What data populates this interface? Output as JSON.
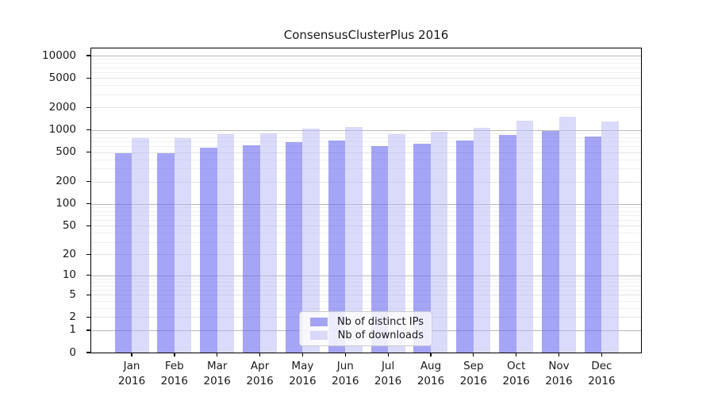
{
  "title": "ConsensusClusterPlus 2016",
  "chart_data": {
    "type": "bar",
    "title": "ConsensusClusterPlus 2016",
    "categories": [
      "Jan 2016",
      "Feb 2016",
      "Mar 2016",
      "Apr 2016",
      "May 2016",
      "Jun 2016",
      "Jul 2016",
      "Aug 2016",
      "Sep 2016",
      "Oct 2016",
      "Nov 2016",
      "Dec 2016"
    ],
    "series": [
      {
        "name": "Nb of distinct IPs",
        "color": "rgba(100,100,240,0.58)",
        "solid_color": "#aaaaf5",
        "values": [
          480,
          485,
          575,
          620,
          690,
          720,
          610,
          650,
          725,
          850,
          960,
          820
        ]
      },
      {
        "name": "Nb of downloads",
        "color": "rgba(185,185,245,0.52)",
        "solid_color": "#dcdcf8",
        "values": [
          780,
          770,
          870,
          905,
          1050,
          1090,
          880,
          940,
          1070,
          1340,
          1520,
          1300
        ]
      }
    ],
    "xlabel": "",
    "ylabel": "",
    "yscale": "log1p",
    "ylim": [
      0,
      10000
    ],
    "yticks": [
      0,
      1,
      2,
      5,
      10,
      20,
      50,
      100,
      200,
      500,
      1000,
      2000,
      5000,
      10000
    ],
    "grid": "on",
    "grid_decades": [
      1,
      10,
      100,
      1000,
      10000
    ],
    "grid_minor_multipliers": [
      3,
      4,
      6,
      7,
      8,
      9
    ],
    "legend_position": "bottom-center",
    "colors": {
      "grid_major": "#b9b9b9",
      "grid_labeled": "#e2e2e2",
      "grid_minor": "#efefef",
      "axis": "#000000",
      "text": "#1a1a1a"
    }
  }
}
